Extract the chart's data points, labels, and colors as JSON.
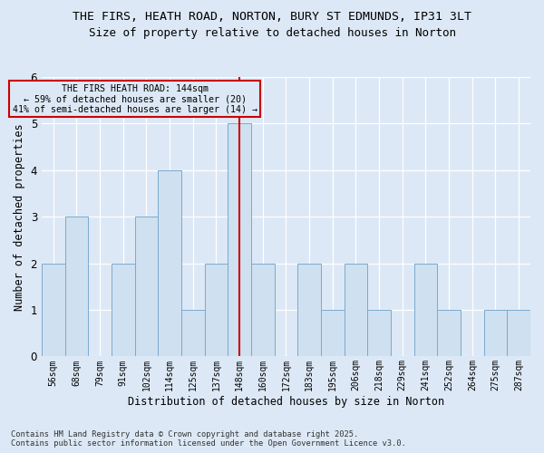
{
  "title_line1": "THE FIRS, HEATH ROAD, NORTON, BURY ST EDMUNDS, IP31 3LT",
  "title_line2": "Size of property relative to detached houses in Norton",
  "xlabel": "Distribution of detached houses by size in Norton",
  "ylabel": "Number of detached properties",
  "categories": [
    "56sqm",
    "68sqm",
    "79sqm",
    "91sqm",
    "102sqm",
    "114sqm",
    "125sqm",
    "137sqm",
    "148sqm",
    "160sqm",
    "172sqm",
    "183sqm",
    "195sqm",
    "206sqm",
    "218sqm",
    "229sqm",
    "241sqm",
    "252sqm",
    "264sqm",
    "275sqm",
    "287sqm"
  ],
  "values": [
    2,
    3,
    0,
    2,
    3,
    4,
    1,
    2,
    5,
    2,
    0,
    2,
    1,
    2,
    1,
    0,
    2,
    1,
    0,
    1,
    1
  ],
  "highlight_index": 8,
  "highlight_line1": "THE FIRS HEATH ROAD: 144sqm",
  "highlight_line2": "← 59% of detached houses are smaller (20)",
  "highlight_line3": "41% of semi-detached houses are larger (14) →",
  "bar_color": "#cfe0f0",
  "bar_edge_color": "#7aaad0",
  "vline_color": "#cc0000",
  "box_edge_color": "#cc0000",
  "background_color": "#dce8f5",
  "grid_color": "#ffffff",
  "ylim": [
    0,
    6
  ],
  "yticks": [
    0,
    1,
    2,
    3,
    4,
    5,
    6
  ],
  "footer_line1": "Contains HM Land Registry data © Crown copyright and database right 2025.",
  "footer_line2": "Contains public sector information licensed under the Open Government Licence v3.0."
}
